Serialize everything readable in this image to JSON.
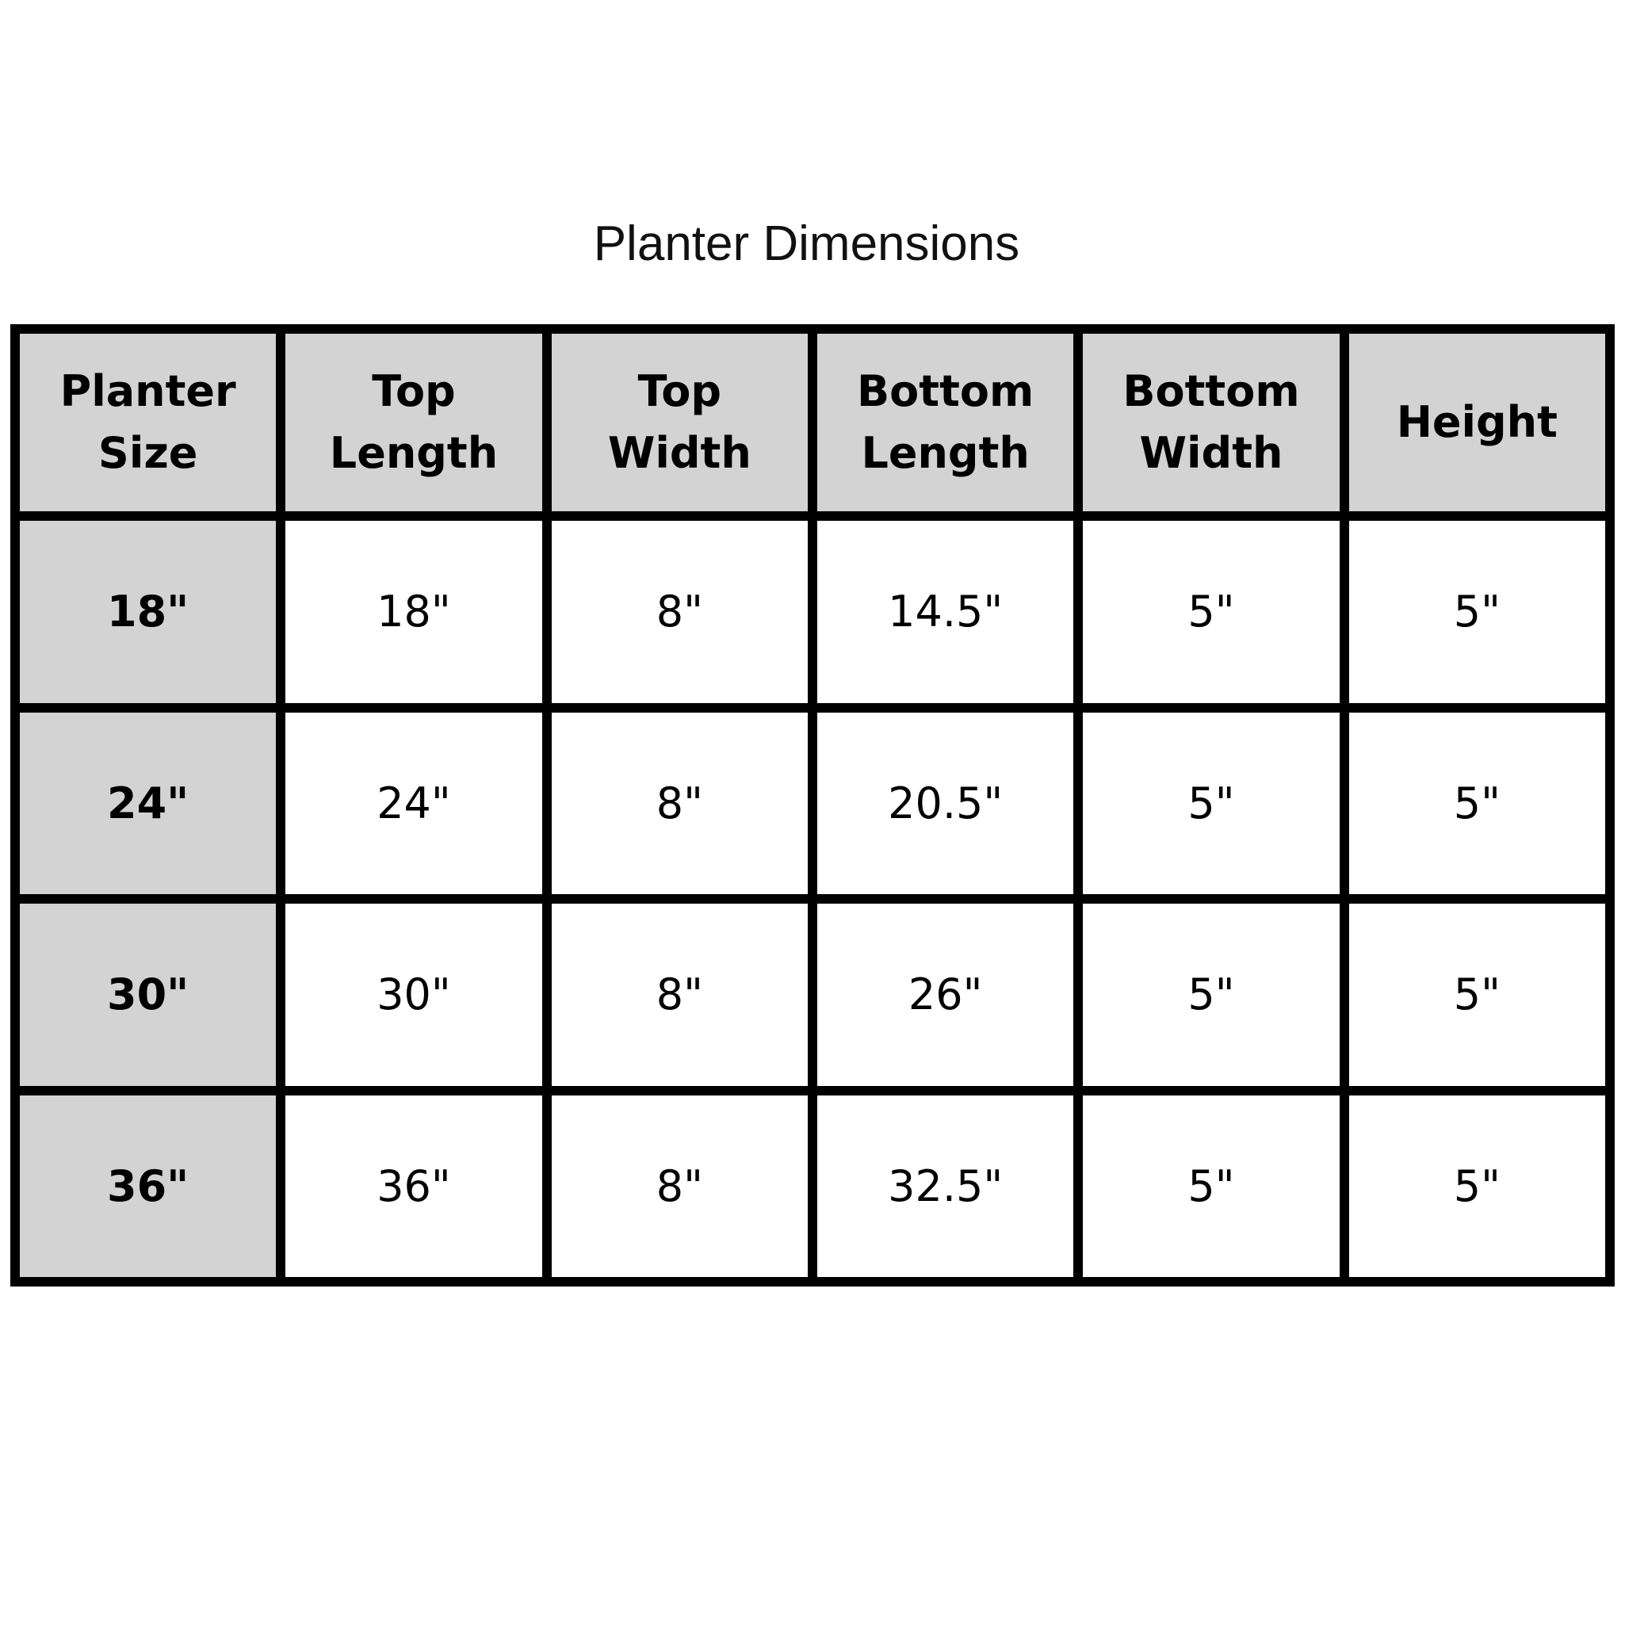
{
  "title": "Planter Dimensions",
  "table": {
    "headers": [
      [
        "Planter",
        "Size"
      ],
      [
        "Top",
        "Length"
      ],
      [
        "Top",
        "Width"
      ],
      [
        "Bottom",
        "Length"
      ],
      [
        "Bottom",
        "Width"
      ],
      [
        "Height",
        ""
      ]
    ],
    "rows": [
      [
        "18\"",
        "18\"",
        "8\"",
        "14.5\"",
        "5\"",
        "5\""
      ],
      [
        "24\"",
        "24\"",
        "8\"",
        "20.5\"",
        "5\"",
        "5\""
      ],
      [
        "30\"",
        "30\"",
        "8\"",
        "26\"",
        "5\"",
        "5\""
      ],
      [
        "36\"",
        "36\"",
        "8\"",
        "32.5\"",
        "5\"",
        "5\""
      ]
    ]
  },
  "colors": {
    "header_bg": "#d3d3d3",
    "border": "#000000",
    "cell_bg": "#ffffff"
  }
}
